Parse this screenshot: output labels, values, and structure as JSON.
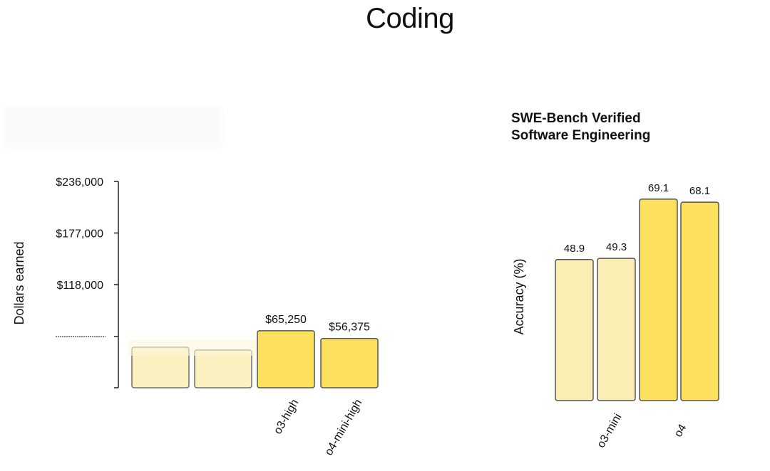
{
  "title": "Coding",
  "colors": {
    "light_bar": "#fbeeb5",
    "bright_bar": "#fde05e",
    "bar_stroke": "#555555",
    "axis": "#222222"
  },
  "chart_data": [
    {
      "type": "bar",
      "title": "",
      "xlabel": "",
      "ylabel": "Dollars earned",
      "ylim": [
        0,
        236000
      ],
      "yticks": [
        118000,
        177000,
        236000
      ],
      "ytick_labels": [
        "$118,000",
        "$177,000",
        "$236,000"
      ],
      "categories": [
        "",
        "",
        "o3-high",
        "o4-mini-high"
      ],
      "values": [
        null,
        null,
        65250,
        56375
      ],
      "data_labels": [
        "",
        "",
        "$65,250",
        "$56,375"
      ],
      "bar_colors": [
        "#fbeeb5",
        "#fbeeb5",
        "#fde05e",
        "#fde05e"
      ]
    },
    {
      "type": "bar",
      "title": "SWE-Bench Verified",
      "subtitle": "Software Engineering",
      "xlabel": "",
      "ylabel": "Accuracy (%)",
      "categories": [
        "",
        "o3-mini",
        "",
        "o4"
      ],
      "values": [
        48.9,
        49.3,
        69.1,
        68.1
      ],
      "data_labels": [
        "48.9",
        "49.3",
        "69.1",
        "68.1"
      ],
      "bar_colors": [
        "#fbeeb5",
        "#fbeeb5",
        "#fde05e",
        "#fde05e"
      ]
    }
  ]
}
